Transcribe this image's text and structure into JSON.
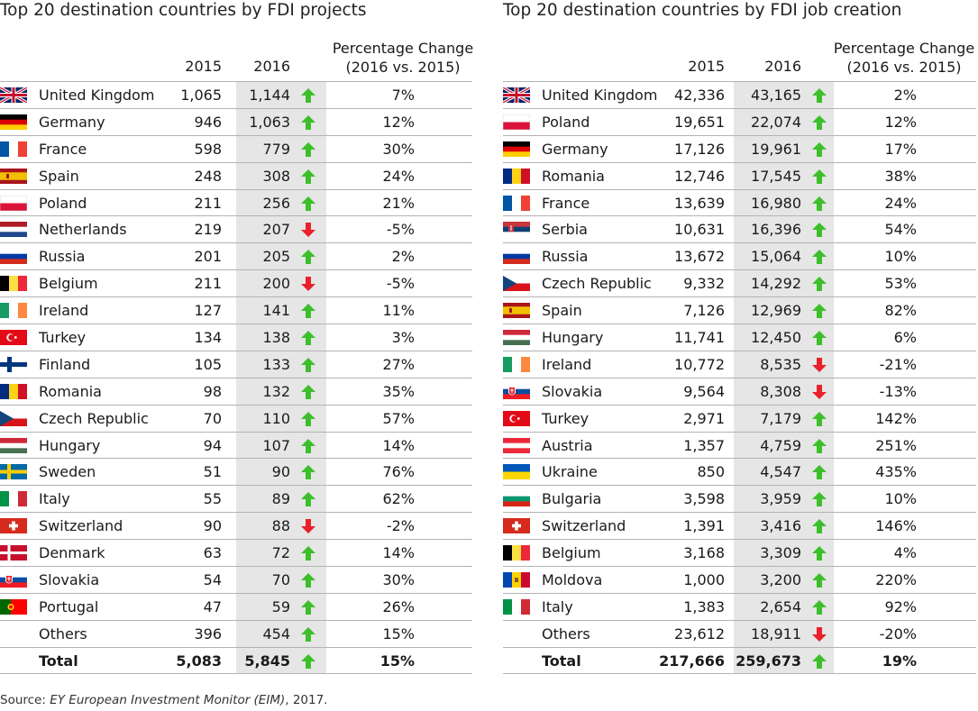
{
  "left": {
    "title": "Top 20 destination countries by FDI projects",
    "headers": {
      "y2015": "2015",
      "y2016": "2016",
      "pct_line1": "Percentage Change",
      "pct_line2": "(2016 vs. 2015)"
    },
    "rows": [
      {
        "flag": "uk",
        "country": "United Kingdom",
        "v2015": "1,065",
        "v2016": "1,144",
        "dir": "up",
        "pct": "7%"
      },
      {
        "flag": "de",
        "country": "Germany",
        "v2015": "946",
        "v2016": "1,063",
        "dir": "up",
        "pct": "12%"
      },
      {
        "flag": "fr",
        "country": "France",
        "v2015": "598",
        "v2016": "779",
        "dir": "up",
        "pct": "30%"
      },
      {
        "flag": "es",
        "country": "Spain",
        "v2015": "248",
        "v2016": "308",
        "dir": "up",
        "pct": "24%"
      },
      {
        "flag": "pl",
        "country": "Poland",
        "v2015": "211",
        "v2016": "256",
        "dir": "up",
        "pct": "21%"
      },
      {
        "flag": "nl",
        "country": "Netherlands",
        "v2015": "219",
        "v2016": "207",
        "dir": "down",
        "pct": "-5%"
      },
      {
        "flag": "ru",
        "country": "Russia",
        "v2015": "201",
        "v2016": "205",
        "dir": "up",
        "pct": "2%"
      },
      {
        "flag": "be",
        "country": "Belgium",
        "v2015": "211",
        "v2016": "200",
        "dir": "down",
        "pct": "-5%"
      },
      {
        "flag": "ie",
        "country": "Ireland",
        "v2015": "127",
        "v2016": "141",
        "dir": "up",
        "pct": "11%"
      },
      {
        "flag": "tr",
        "country": "Turkey",
        "v2015": "134",
        "v2016": "138",
        "dir": "up",
        "pct": "3%"
      },
      {
        "flag": "fi",
        "country": "Finland",
        "v2015": "105",
        "v2016": "133",
        "dir": "up",
        "pct": "27%"
      },
      {
        "flag": "ro",
        "country": "Romania",
        "v2015": "98",
        "v2016": "132",
        "dir": "up",
        "pct": "35%"
      },
      {
        "flag": "cz",
        "country": "Czech Republic",
        "v2015": "70",
        "v2016": "110",
        "dir": "up",
        "pct": "57%"
      },
      {
        "flag": "hu",
        "country": "Hungary",
        "v2015": "94",
        "v2016": "107",
        "dir": "up",
        "pct": "14%"
      },
      {
        "flag": "se",
        "country": "Sweden",
        "v2015": "51",
        "v2016": "90",
        "dir": "up",
        "pct": "76%"
      },
      {
        "flag": "it",
        "country": "Italy",
        "v2015": "55",
        "v2016": "89",
        "dir": "up",
        "pct": "62%"
      },
      {
        "flag": "ch",
        "country": "Switzerland",
        "v2015": "90",
        "v2016": "88",
        "dir": "down",
        "pct": "-2%"
      },
      {
        "flag": "dk",
        "country": "Denmark",
        "v2015": "63",
        "v2016": "72",
        "dir": "up",
        "pct": "14%"
      },
      {
        "flag": "sk",
        "country": "Slovakia",
        "v2015": "54",
        "v2016": "70",
        "dir": "up",
        "pct": "30%"
      },
      {
        "flag": "pt",
        "country": "Portugal",
        "v2015": "47",
        "v2016": "59",
        "dir": "up",
        "pct": "26%"
      },
      {
        "flag": "",
        "country": "Others",
        "v2015": "396",
        "v2016": "454",
        "dir": "up",
        "pct": "15%"
      },
      {
        "flag": "",
        "country": "Total",
        "v2015": "5,083",
        "v2016": "5,845",
        "dir": "up",
        "pct": "15%",
        "total": true
      }
    ]
  },
  "right": {
    "title": "Top 20 destination countries by FDI job creation",
    "headers": {
      "y2015": "2015",
      "y2016": "2016",
      "pct_line1": "Percentage Change",
      "pct_line2": "(2016 vs. 2015)"
    },
    "rows": [
      {
        "flag": "uk",
        "country": "United Kingdom",
        "v2015": "42,336",
        "v2016": "43,165",
        "dir": "up",
        "pct": "2%"
      },
      {
        "flag": "pl",
        "country": "Poland",
        "v2015": "19,651",
        "v2016": "22,074",
        "dir": "up",
        "pct": "12%"
      },
      {
        "flag": "de",
        "country": "Germany",
        "v2015": "17,126",
        "v2016": "19,961",
        "dir": "up",
        "pct": "17%"
      },
      {
        "flag": "ro",
        "country": "Romania",
        "v2015": "12,746",
        "v2016": "17,545",
        "dir": "up",
        "pct": "38%"
      },
      {
        "flag": "fr",
        "country": "France",
        "v2015": "13,639",
        "v2016": "16,980",
        "dir": "up",
        "pct": "24%"
      },
      {
        "flag": "rs",
        "country": "Serbia",
        "v2015": "10,631",
        "v2016": "16,396",
        "dir": "up",
        "pct": "54%"
      },
      {
        "flag": "ru",
        "country": "Russia",
        "v2015": "13,672",
        "v2016": "15,064",
        "dir": "up",
        "pct": "10%"
      },
      {
        "flag": "cz",
        "country": "Czech Republic",
        "v2015": "9,332",
        "v2016": "14,292",
        "dir": "up",
        "pct": "53%"
      },
      {
        "flag": "es",
        "country": "Spain",
        "v2015": "7,126",
        "v2016": "12,969",
        "dir": "up",
        "pct": "82%"
      },
      {
        "flag": "hu",
        "country": "Hungary",
        "v2015": "11,741",
        "v2016": "12,450",
        "dir": "up",
        "pct": "6%"
      },
      {
        "flag": "ie",
        "country": "Ireland",
        "v2015": "10,772",
        "v2016": "8,535",
        "dir": "down",
        "pct": "-21%"
      },
      {
        "flag": "sk",
        "country": "Slovakia",
        "v2015": "9,564",
        "v2016": "8,308",
        "dir": "down",
        "pct": "-13%"
      },
      {
        "flag": "tr",
        "country": "Turkey",
        "v2015": "2,971",
        "v2016": "7,179",
        "dir": "up",
        "pct": "142%"
      },
      {
        "flag": "at",
        "country": "Austria",
        "v2015": "1,357",
        "v2016": "4,759",
        "dir": "up",
        "pct": "251%"
      },
      {
        "flag": "ua",
        "country": "Ukraine",
        "v2015": "850",
        "v2016": "4,547",
        "dir": "up",
        "pct": "435%"
      },
      {
        "flag": "bg",
        "country": "Bulgaria",
        "v2015": "3,598",
        "v2016": "3,959",
        "dir": "up",
        "pct": "10%"
      },
      {
        "flag": "ch",
        "country": "Switzerland",
        "v2015": "1,391",
        "v2016": "3,416",
        "dir": "up",
        "pct": "146%"
      },
      {
        "flag": "be",
        "country": "Belgium",
        "v2015": "3,168",
        "v2016": "3,309",
        "dir": "up",
        "pct": "4%"
      },
      {
        "flag": "md",
        "country": "Moldova",
        "v2015": "1,000",
        "v2016": "3,200",
        "dir": "up",
        "pct": "220%"
      },
      {
        "flag": "it",
        "country": "Italy",
        "v2015": "1,383",
        "v2016": "2,654",
        "dir": "up",
        "pct": "92%"
      },
      {
        "flag": "",
        "country": "Others",
        "v2015": "23,612",
        "v2016": "18,911",
        "dir": "down",
        "pct": "-20%"
      },
      {
        "flag": "",
        "country": "Total",
        "v2015": "217,666",
        "v2016": "259,673",
        "dir": "up",
        "pct": "19%",
        "total": true
      }
    ]
  },
  "source": {
    "prefix": "Source: ",
    "italic": "EY European Investment Monitor (EIM)",
    "suffix": ", 2017."
  },
  "colors": {
    "up_arrow": "#3dbf2b",
    "down_arrow": "#e8212a",
    "highlight_column": "#e6e6e6",
    "rule": "#b3b3b3"
  }
}
